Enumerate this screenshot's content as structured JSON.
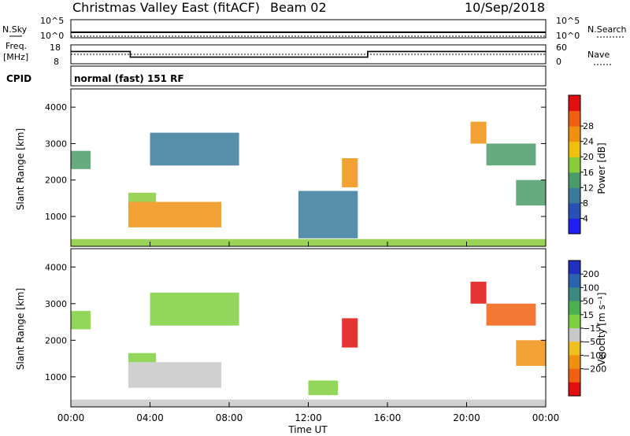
{
  "header": {
    "station": "Christmas Valley East (fitACF)",
    "beam": "Beam 02",
    "date": "10/Sep/2018"
  },
  "strip": {
    "nsky_label": "N.Sky",
    "nsky_ticks": [
      "10^5",
      "10^0"
    ],
    "nsearch_label": "N.Search",
    "nsearch_ticks": [
      "10^5",
      "10^0"
    ],
    "freq_label": "Freq.",
    "freq_unit": "[MHz]",
    "freq_ticks": [
      "18",
      "8"
    ],
    "nave_label": "Nave",
    "nave_ticks": [
      "60",
      "0"
    ],
    "cpid_label": "CPID",
    "cpid_text": "normal (fast) 151 RF"
  },
  "panels": {
    "top_ylabel": "Slant Range [km]",
    "bottom_ylabel": "Slant Range [km]",
    "yticks": [
      "1000",
      "2000",
      "3000",
      "4000"
    ],
    "xticks": [
      "00:00",
      "04:00",
      "08:00",
      "12:00",
      "16:00",
      "20:00",
      "00:00"
    ],
    "xlabel": "Time UT"
  },
  "colorbars": {
    "power": {
      "label": "Power [dB]",
      "ticks": [
        "4",
        "8",
        "12",
        "16",
        "20",
        "24",
        "28"
      ],
      "colors": [
        "#1f1ff0",
        "#2a4fb5",
        "#3a7a9a",
        "#4b9b6a",
        "#8acb3a",
        "#f0c010",
        "#f09010",
        "#f06010",
        "#e01010"
      ]
    },
    "velocity": {
      "label": "Velocity [m s⁻¹]",
      "ticks": [
        "200",
        "100",
        "50",
        "15",
        "−15",
        "−50",
        "−100",
        "−200"
      ],
      "colors": [
        "#2030c0",
        "#2a62b0",
        "#3a8a80",
        "#4ab050",
        "#7fd040",
        "#c8c8c8",
        "#f0c020",
        "#f09010",
        "#f06010",
        "#e01010"
      ]
    }
  },
  "chart_data": [
    {
      "type": "line",
      "title": "Freq. [MHz]",
      "x_unit": "hours UT",
      "x": [
        0,
        3,
        3,
        15,
        15,
        24
      ],
      "y": [
        14.5,
        14.5,
        11.5,
        11.5,
        14.5,
        14.5
      ],
      "ylim": [
        8,
        18
      ]
    },
    {
      "type": "heatmap",
      "title": "Power [dB]",
      "xlabel": "Time UT",
      "ylabel": "Slant Range [km]",
      "xlim": [
        0,
        24
      ],
      "ylim": [
        180,
        4500
      ],
      "clim": [
        0,
        30
      ],
      "regions": [
        {
          "t0": 2.9,
          "t1": 7.6,
          "r0": 700,
          "r1": 1400,
          "level": 20
        },
        {
          "t0": 2.9,
          "t1": 4.3,
          "r0": 1400,
          "r1": 1650,
          "level": 14
        },
        {
          "t0": 0.0,
          "t1": 24.0,
          "r0": 180,
          "r1": 380,
          "level": 14
        },
        {
          "t0": 13.7,
          "t1": 14.5,
          "r0": 1800,
          "r1": 2600,
          "level": 22
        },
        {
          "t0": 20.2,
          "t1": 21.0,
          "r0": 3000,
          "r1": 3600,
          "level": 20
        },
        {
          "t0": 21.0,
          "t1": 23.5,
          "r0": 2400,
          "r1": 3000,
          "level": 12
        },
        {
          "t0": 22.5,
          "t1": 24.0,
          "r0": 1300,
          "r1": 2000,
          "level": 12
        },
        {
          "t0": 0.0,
          "t1": 1.0,
          "r0": 2300,
          "r1": 2800,
          "level": 10
        },
        {
          "t0": 4.0,
          "t1": 8.5,
          "r0": 2400,
          "r1": 3300,
          "level": 8
        },
        {
          "t0": 11.5,
          "t1": 14.5,
          "r0": 400,
          "r1": 1700,
          "level": 8
        }
      ]
    },
    {
      "type": "heatmap",
      "title": "Velocity [m s-1]",
      "xlabel": "Time UT",
      "ylabel": "Slant Range [km]",
      "xlim": [
        0,
        24
      ],
      "ylim": [
        180,
        4500
      ],
      "clim": [
        -200,
        200
      ],
      "regions": [
        {
          "t0": 2.9,
          "t1": 7.6,
          "r0": 700,
          "r1": 1400,
          "level": -30
        },
        {
          "t0": 2.9,
          "t1": 4.3,
          "r0": 1400,
          "r1": 1650,
          "level": 30
        },
        {
          "t0": 0.0,
          "t1": 24.0,
          "r0": 180,
          "r1": 380,
          "level": -20
        },
        {
          "t0": 13.7,
          "t1": 14.5,
          "r0": 1800,
          "r1": 2600,
          "level": -200
        },
        {
          "t0": 20.2,
          "t1": 21.0,
          "r0": 3000,
          "r1": 3600,
          "level": -200
        },
        {
          "t0": 21.0,
          "t1": 23.5,
          "r0": 2400,
          "r1": 3000,
          "level": -150
        },
        {
          "t0": 22.5,
          "t1": 24.0,
          "r0": 1300,
          "r1": 2000,
          "level": -80
        },
        {
          "t0": 0.0,
          "t1": 1.0,
          "r0": 2300,
          "r1": 2800,
          "level": 5
        },
        {
          "t0": 4.0,
          "t1": 8.5,
          "r0": 2400,
          "r1": 3300,
          "level": 5
        },
        {
          "t0": 12.0,
          "t1": 13.5,
          "r0": 500,
          "r1": 900,
          "level": 40
        }
      ]
    }
  ]
}
